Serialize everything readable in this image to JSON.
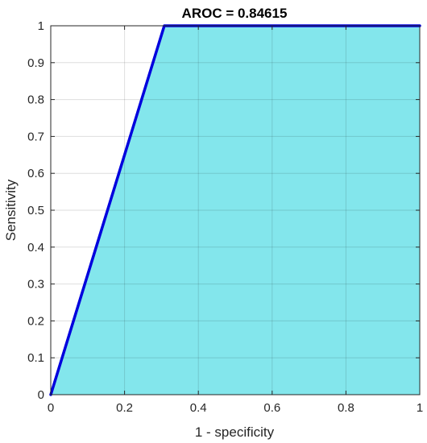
{
  "chart_data": {
    "type": "area",
    "title": "AROC = 0.84615",
    "xlabel": "1 - specificity",
    "ylabel": "Sensitivity",
    "xlim": [
      0,
      1
    ],
    "ylim": [
      0,
      1
    ],
    "grid": true,
    "x_ticks": [
      0,
      0.2,
      0.4,
      0.6,
      0.8,
      1
    ],
    "x_tick_labels": [
      "0",
      "0.2",
      "0.4",
      "0.6",
      "0.8",
      "1"
    ],
    "y_ticks": [
      0,
      0.1,
      0.2,
      0.3,
      0.4,
      0.5,
      0.6,
      0.7,
      0.8,
      0.9,
      1
    ],
    "y_tick_labels": [
      "0",
      "0.1",
      "0.2",
      "0.3",
      "0.4",
      "0.5",
      "0.6",
      "0.7",
      "0.8",
      "0.9",
      "1"
    ],
    "series": [
      {
        "x": [
          0,
          0.3077,
          1
        ],
        "y": [
          0,
          1,
          1
        ],
        "line_color": "#0000dd",
        "fill_color": "#83e6ec"
      }
    ]
  }
}
